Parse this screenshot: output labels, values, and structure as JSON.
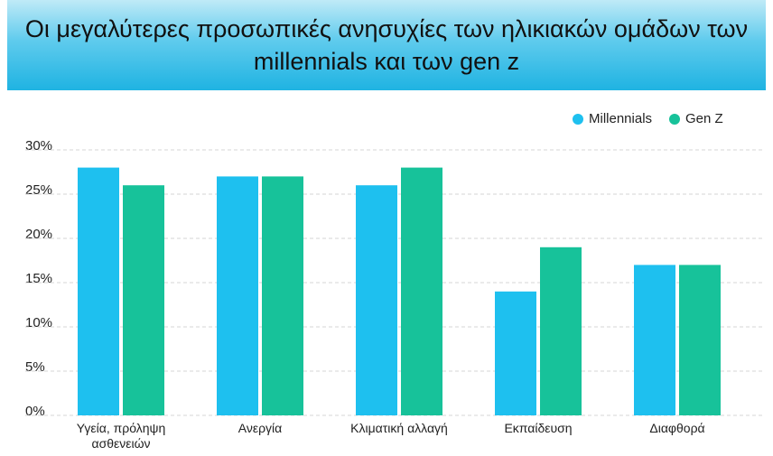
{
  "chart_data": {
    "type": "bar",
    "title": "Οι μεγαλύτερες προσωπικές ανησυχίες των ηλικιακών ομάδων των millennials και των gen z",
    "categories": [
      "Υγεία, πρόληψη ασθενειών",
      "Ανεργία",
      "Κλιματική αλλαγή",
      "Εκπαίδευση",
      "Διαφθορά"
    ],
    "series": [
      {
        "name": "Millennials",
        "color": "#1ec0ef",
        "values": [
          28,
          27,
          26,
          14,
          17
        ]
      },
      {
        "name": "Gen Z",
        "color": "#17c29a",
        "values": [
          26,
          27,
          28,
          19,
          17
        ]
      }
    ],
    "ylim": [
      0,
      30
    ],
    "yticks": [
      {
        "value": 0,
        "label": "0%"
      },
      {
        "value": 5,
        "label": "5%"
      },
      {
        "value": 10,
        "label": "10%"
      },
      {
        "value": 15,
        "label": "15%"
      },
      {
        "value": 20,
        "label": "20%"
      },
      {
        "value": 25,
        "label": "25%"
      },
      {
        "value": 30,
        "label": "30%"
      }
    ],
    "grid": true,
    "legend": "top-right"
  }
}
